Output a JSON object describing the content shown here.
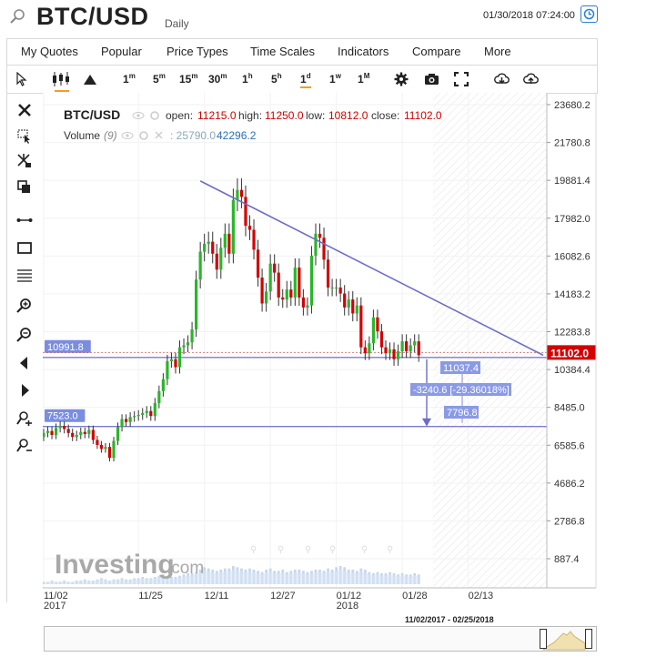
{
  "header": {
    "symbol": "BTC/USD",
    "interval": "Daily",
    "datetime": "01/30/2018 07:24:00"
  },
  "menu": [
    "My Quotes",
    "Popular",
    "Price Types",
    "Time Scales",
    "Indicators",
    "Compare",
    "More"
  ],
  "timeframes": [
    {
      "base": "1",
      "sup": "m"
    },
    {
      "base": "5",
      "sup": "m"
    },
    {
      "base": "15",
      "sup": "m"
    },
    {
      "base": "30",
      "sup": "m"
    },
    {
      "base": "1",
      "sup": "h"
    },
    {
      "base": "5",
      "sup": "h"
    },
    {
      "base": "1",
      "sup": "d"
    },
    {
      "base": "1",
      "sup": "w"
    },
    {
      "base": "1",
      "sup": "M"
    }
  ],
  "legend": {
    "symbol": "BTC/USD",
    "open_label": "open:",
    "open": "11215.0",
    "high_label": "high:",
    "high": "11250.0",
    "low_label": "low:",
    "low": "10812.0",
    "close_label": "close:",
    "close": "11102.0",
    "volume_label": "Volume",
    "volume_param": "(9)",
    "volume_a": ": 25790.0",
    "volume_b": "42296.2"
  },
  "watermark": "Investing",
  "watermark_suffix": ".com",
  "range_label": "11/02/2017 - 02/25/2018",
  "chart_data": {
    "type": "candlestick",
    "y_ticks": [
      "23680.2",
      "21780.8",
      "19881.4",
      "17982.0",
      "16082.6",
      "14183.2",
      "12283.8",
      "10384.4",
      "8485.0",
      "6585.6",
      "4686.2",
      "2786.8",
      "887.4"
    ],
    "ylim": [
      0,
      24100
    ],
    "x_ticks": [
      {
        "label": "11/02",
        "sub": "2017",
        "day": 0
      },
      {
        "label": "11/25",
        "sub": "",
        "day": 23
      },
      {
        "label": "12/11",
        "sub": "",
        "day": 39
      },
      {
        "label": "12/27",
        "sub": "",
        "day": 55
      },
      {
        "label": "01/12",
        "sub": "2018",
        "day": 71
      },
      {
        "label": "01/28",
        "sub": "",
        "day": 87
      },
      {
        "label": "02/13",
        "sub": "",
        "day": 103
      }
    ],
    "last_price": "11102.0",
    "last_price_value": 11102,
    "levels": [
      {
        "label": "10991.8",
        "value": 10991.8
      },
      {
        "label": "7523.0",
        "value": 7523.0
      }
    ],
    "measure": {
      "top": "11037.4",
      "diff": "-3240.6 [-29.36018%]",
      "bottom": "7796.8"
    },
    "trendline": {
      "start_day": 38,
      "start_value": 19850,
      "end_day": 109,
      "end_value": 11102
    },
    "closes": [
      7200,
      7300,
      7100,
      7450,
      7550,
      7400,
      7200,
      7000,
      7100,
      7250,
      7150,
      7350,
      6850,
      6600,
      6400,
      6500,
      5950,
      6800,
      7500,
      7900,
      7750,
      8000,
      8050,
      8100,
      8200,
      8300,
      8050,
      8700,
      9300,
      9900,
      10800,
      10900,
      10500,
      11500,
      11600,
      11750,
      12400,
      14900,
      16300,
      16700,
      16800,
      16200,
      15400,
      16500,
      17200,
      16200,
      18900,
      19400,
      19050,
      17600,
      17400,
      16400,
      15000,
      13700,
      14300,
      15700,
      15250,
      14000,
      13900,
      14400,
      14000,
      15500,
      14000,
      13500,
      13600,
      16100,
      17200,
      17000,
      15900,
      14500,
      14500,
      14500,
      14200,
      13500,
      13900,
      13200,
      13600,
      11500,
      11200,
      11700,
      13000,
      12300,
      11500,
      11200,
      11400,
      10900,
      11300,
      11800,
      11300,
      11600,
      11800,
      11102
    ],
    "volumes": [
      2,
      2,
      3,
      2,
      2,
      3,
      2,
      2,
      3,
      3,
      4,
      3,
      3,
      4,
      5,
      4,
      3,
      4,
      4,
      5,
      4,
      4,
      5,
      5,
      6,
      5,
      5,
      6,
      7,
      8,
      7,
      6,
      6,
      7,
      8,
      9,
      9,
      10,
      12,
      14,
      13,
      12,
      11,
      12,
      13,
      13,
      15,
      14,
      13,
      12,
      13,
      12,
      11,
      10,
      12,
      13,
      11,
      11,
      12,
      10,
      11,
      12,
      12,
      11,
      10,
      11,
      12,
      12,
      11,
      13,
      12,
      14,
      15,
      14,
      12,
      12,
      11,
      13,
      12,
      10,
      9,
      10,
      9,
      9,
      10,
      9,
      8,
      9,
      8,
      8,
      9,
      8
    ]
  }
}
